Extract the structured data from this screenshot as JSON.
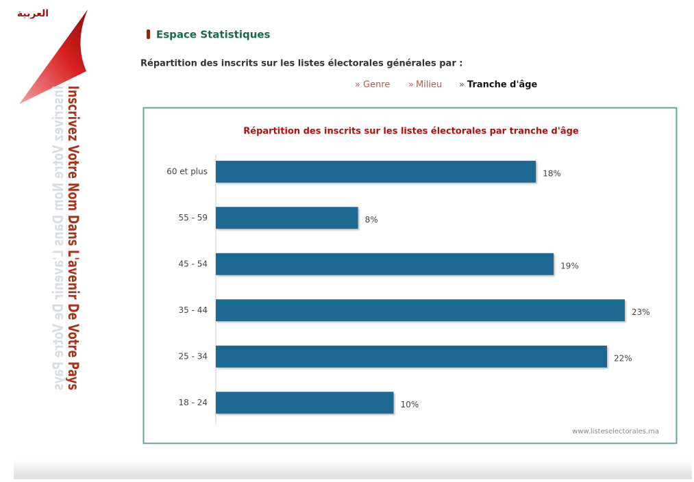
{
  "sidebar": {
    "language_link": "العربية",
    "slogan": "Inscrivez Votre Nom Dans L'avenir De Votre Pays"
  },
  "section_title": "Espace Statistiques",
  "intro": "Répartition des inscrits sur les listes électorales générales par :",
  "tabs": [
    "Genre",
    "Milieu",
    "Tranche d'âge"
  ],
  "chart_data": {
    "type": "bar",
    "orientation": "horizontal",
    "title": "Répartition des inscrits sur les listes électorales par tranche d'âge",
    "categories": [
      "60 et plus",
      "55 - 59",
      "45 - 54",
      "35 - 44",
      "25 - 34",
      "18 - 24"
    ],
    "values": [
      18,
      8,
      19,
      23,
      22,
      10
    ],
    "value_labels": [
      "18%",
      "8%",
      "19%",
      "23%",
      "22%",
      "10%"
    ],
    "color": "#1f6a94",
    "source": "www.listeselectorales.ma"
  }
}
